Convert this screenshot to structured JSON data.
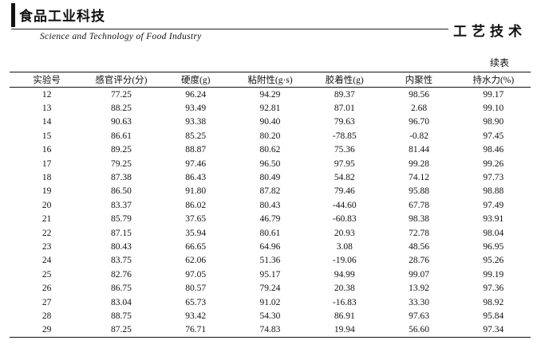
{
  "header": {
    "journal": "食品工业科技",
    "subtitle": "Science and Technology of Food Industry",
    "section": "工艺技术"
  },
  "table": {
    "caption": "续表",
    "columns": [
      "实验号",
      "感官评分(分)",
      "硬度(g)",
      "粘附性(g·s)",
      "胶着性(g)",
      "内聚性",
      "持水力(%)"
    ],
    "rows": [
      [
        "12",
        "77.25",
        "96.24",
        "94.29",
        "89.37",
        "98.56",
        "99.17"
      ],
      [
        "13",
        "88.25",
        "93.49",
        "92.81",
        "87.01",
        "2.68",
        "99.10"
      ],
      [
        "14",
        "90.63",
        "93.38",
        "90.40",
        "79.63",
        "96.70",
        "98.90"
      ],
      [
        "15",
        "86.61",
        "85.25",
        "80.20",
        "-78.85",
        "-0.82",
        "97.45"
      ],
      [
        "16",
        "89.25",
        "88.87",
        "80.62",
        "75.36",
        "81.44",
        "98.46"
      ],
      [
        "17",
        "79.25",
        "97.46",
        "96.50",
        "97.95",
        "99.28",
        "99.26"
      ],
      [
        "18",
        "87.38",
        "86.43",
        "80.49",
        "54.82",
        "74.12",
        "97.73"
      ],
      [
        "19",
        "86.50",
        "91.80",
        "87.82",
        "79.46",
        "95.88",
        "98.88"
      ],
      [
        "20",
        "83.37",
        "86.02",
        "80.43",
        "-44.60",
        "67.78",
        "97.49"
      ],
      [
        "21",
        "85.79",
        "37.65",
        "46.79",
        "-60.83",
        "98.38",
        "93.91"
      ],
      [
        "22",
        "87.15",
        "35.94",
        "80.61",
        "20.93",
        "72.78",
        "98.04"
      ],
      [
        "23",
        "80.43",
        "66.65",
        "64.96",
        "3.08",
        "48.56",
        "96.95"
      ],
      [
        "24",
        "83.75",
        "62.06",
        "51.36",
        "-19.06",
        "28.76",
        "95.26"
      ],
      [
        "25",
        "82.76",
        "97.05",
        "95.17",
        "94.99",
        "99.07",
        "99.19"
      ],
      [
        "26",
        "86.75",
        "80.57",
        "79.24",
        "20.38",
        "13.92",
        "97.36"
      ],
      [
        "27",
        "83.04",
        "65.73",
        "91.02",
        "-16.83",
        "33.30",
        "98.92"
      ],
      [
        "28",
        "88.75",
        "93.42",
        "54.30",
        "86.91",
        "97.63",
        "95.84"
      ],
      [
        "29",
        "87.25",
        "76.71",
        "74.83",
        "19.94",
        "56.60",
        "97.34"
      ]
    ]
  }
}
